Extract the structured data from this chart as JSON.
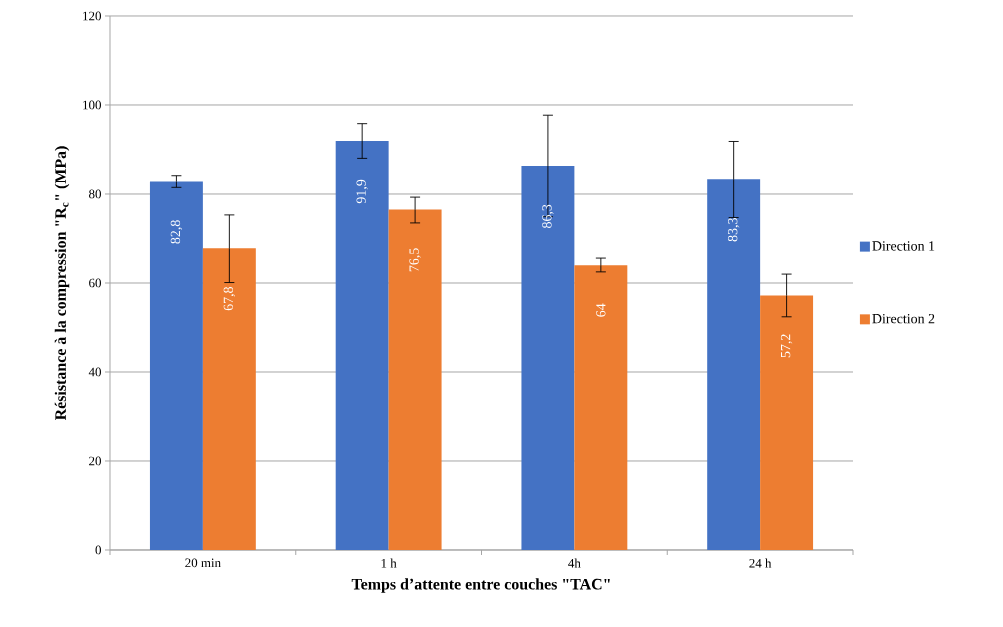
{
  "chart_data": {
    "type": "bar",
    "xlabel": "Temps d’attente entre couches \"TAC\"",
    "ylabel": "Résistance à la compression \"R$_{c}$\" (MPa)",
    "categories": [
      "20 min",
      "1 h",
      "4h",
      "24 h"
    ],
    "series": [
      {
        "name": "Direction 1",
        "color": "#4472c4",
        "values": [
          82.8,
          91.9,
          86.3,
          83.3
        ],
        "value_labels": [
          "82,8",
          "91,9",
          "86,3",
          "83,3"
        ],
        "errors": [
          [
            81.5,
            84.1
          ],
          [
            88.0,
            95.8
          ],
          [
            74.9,
            97.7
          ],
          [
            74.7,
            91.8
          ]
        ]
      },
      {
        "name": "Direction 2",
        "color": "#ed7d31",
        "values": [
          67.8,
          76.5,
          64,
          57.2
        ],
        "value_labels": [
          "67,8",
          "76,5",
          "64",
          "57,2"
        ],
        "errors": [
          [
            60.1,
            75.3
          ],
          [
            73.5,
            79.3
          ],
          [
            62.5,
            65.6
          ],
          [
            52.4,
            62.0
          ]
        ]
      }
    ],
    "ylim": [
      0,
      120
    ],
    "yticks": [
      0,
      20,
      40,
      60,
      80,
      100,
      120
    ],
    "grid": "y",
    "legend": "right"
  }
}
